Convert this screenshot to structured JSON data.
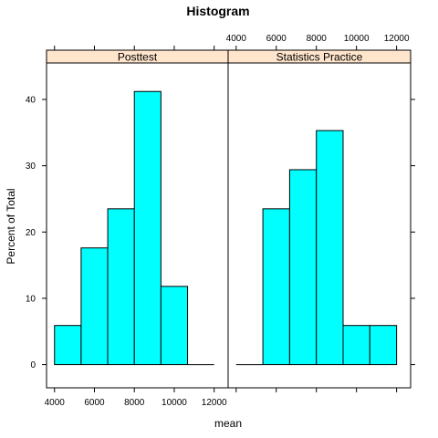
{
  "chart_data": {
    "type": "bar",
    "title": "Histogram",
    "xlabel": "mean",
    "ylabel": "Percent of Total",
    "xlim": [
      3600,
      12700
    ],
    "ylim": [
      -3.5,
      45.5
    ],
    "x_ticks": [
      4000,
      6000,
      8000,
      10000,
      12000
    ],
    "y_ticks": [
      0,
      10,
      20,
      30,
      40
    ],
    "bin_edges": [
      4000,
      5333,
      6667,
      8000,
      9333,
      10667,
      12000
    ],
    "bar_color": "#00ffff",
    "strip_color": "#ffe5cc",
    "panels": [
      {
        "name": "Posttest",
        "values": [
          5.9,
          17.6,
          23.5,
          41.2,
          11.8,
          0
        ]
      },
      {
        "name": "Statistics Practice",
        "values": [
          0,
          23.5,
          29.4,
          35.3,
          5.9,
          5.9
        ]
      }
    ]
  }
}
